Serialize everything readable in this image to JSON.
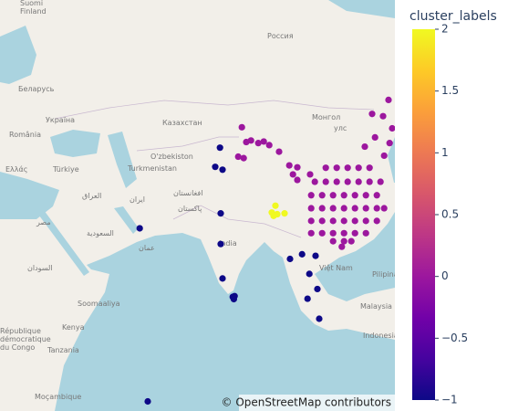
{
  "chart_data": {
    "type": "scatter_map",
    "colorbar_title": "cluster_labels",
    "clim": [
      -1,
      2
    ],
    "colorbar_ticks": [
      2,
      1.5,
      1,
      0.5,
      0,
      {
        "value": -0.5,
        "label": "−0.5"
      },
      {
        "value": -1,
        "label": "−1"
      }
    ],
    "colorscale": [
      [
        0,
        "#0d0887"
      ],
      [
        0.111,
        "#46039f"
      ],
      [
        0.222,
        "#7201a8"
      ],
      [
        0.333,
        "#9c179e"
      ],
      [
        0.444,
        "#bd3786"
      ],
      [
        0.556,
        "#d8576b"
      ],
      [
        0.667,
        "#ed7953"
      ],
      [
        0.778,
        "#fb9f3a"
      ],
      [
        0.889,
        "#fdca26"
      ],
      [
        1,
        "#f0f921"
      ]
    ],
    "lon": [
      77,
      75.7,
      77.7,
      77.2,
      55,
      77.2,
      77.7,
      80.5,
      80.8,
      81,
      96.2,
      99.5,
      103.2,
      101.5,
      103.7,
      101,
      104.2,
      57.2,
      92.2,
      91.2,
      92.7,
      91.7,
      94.7,
      83,
      84.2,
      85.5,
      87.5,
      89,
      90.5,
      82,
      83.5,
      93.2,
      96,
      98.2,
      97,
      98.2,
      101.7,
      123.2,
      118.7,
      121.7,
      124.2,
      119.5,
      116.7,
      123.5,
      122,
      106,
      109,
      112,
      115,
      118,
      103,
      106,
      109,
      112,
      115,
      118,
      121,
      102,
      105,
      108,
      111,
      114,
      117,
      120,
      102,
      105,
      108,
      111,
      114,
      117,
      120,
      122,
      102,
      105,
      108,
      111,
      114,
      117,
      120,
      102,
      105,
      108,
      111,
      114,
      117,
      108,
      111,
      113,
      110.4
    ],
    "lat": [
      43.1,
      39.2,
      38.6,
      28.8,
      25.2,
      21.3,
      12.4,
      7.5,
      6.9,
      7.7,
      17.5,
      18.7,
      18.3,
      13.6,
      9.6,
      7,
      1.6,
      -20.3,
      30.6,
      29,
      28.6,
      28.2,
      28.8,
      47,
      44.2,
      44.5,
      44,
      44.3,
      43.6,
      41.3,
      41,
      42.3,
      39.5,
      39.1,
      37.6,
      36.4,
      37.6,
      51.8,
      49.4,
      49,
      46.8,
      45.1,
      43.3,
      44,
      41.5,
      39,
      39,
      39,
      39,
      39,
      36,
      36,
      36,
      36,
      36,
      36,
      36,
      33,
      33,
      33,
      33,
      33,
      33,
      33,
      30,
      30,
      30,
      30,
      30,
      30,
      30,
      30,
      27,
      27,
      27,
      27,
      27,
      27,
      27,
      24,
      24,
      24,
      24,
      24,
      24,
      22,
      22,
      22,
      20.6
    ],
    "color": [
      -1,
      -1,
      -1,
      -1,
      -1,
      -1,
      -1,
      -1,
      -1,
      -1,
      -1,
      -1,
      -1,
      -1,
      -1,
      -1,
      -1,
      -1,
      2,
      2,
      2,
      2,
      2,
      0,
      0,
      0,
      0,
      0,
      0,
      0,
      0,
      0,
      0,
      0,
      0,
      0,
      0,
      0,
      0,
      0,
      0,
      0,
      0,
      0,
      0,
      0,
      0,
      0,
      0,
      0,
      0,
      0,
      0,
      0,
      0,
      0,
      0,
      0,
      0,
      0,
      0,
      0,
      0,
      0,
      0,
      0,
      0,
      0,
      0,
      0,
      0,
      0,
      0,
      0,
      0,
      0,
      0,
      0,
      0,
      0,
      0,
      0,
      0,
      0,
      0,
      0,
      0,
      0,
      0
    ],
    "map_labels": [
      "Suomi",
      "Finland",
      "Россия",
      "Беларусь",
      "Україна",
      "România",
      "Казахстан",
      "Монгол",
      "улс",
      "Türkiye",
      "Ελλάς",
      "O'zbekiston",
      "Turkmenistan",
      "العراق",
      "ایران",
      "افغانستان",
      "پاکستان",
      "مصر",
      "السعودية",
      "عمان",
      "India",
      "Việt Nam",
      "Pilipinas",
      "Malaysia",
      "Indonesia",
      "Kenya",
      "Tanzania",
      "Moçambique",
      "السودان",
      "Soomaaliya",
      "République",
      "démocratique",
      "du Congo"
    ],
    "attribution": "© OpenStreetMap contributors"
  }
}
